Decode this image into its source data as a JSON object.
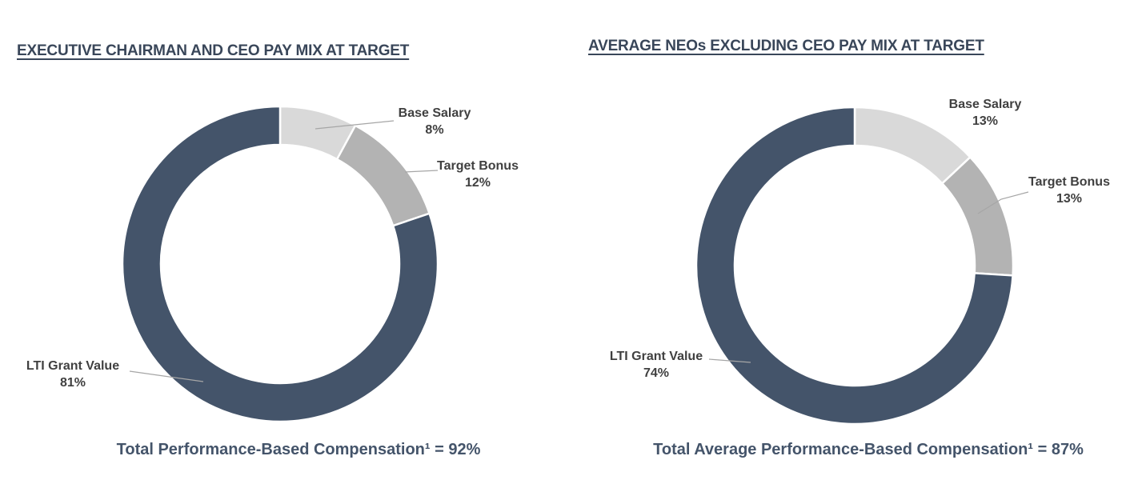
{
  "page": {
    "background": "#ffffff",
    "figure_description": "Two donut charts showing executive pay mix at target"
  },
  "colors": {
    "navy": "#44546A",
    "medium_gray": "#b3b3b3",
    "light_gray": "#d9d9d9",
    "label_text": "#404040",
    "leader_line": "#a6a6a6",
    "title_text": "#394659",
    "caption_text": "#44546A",
    "separator": "#ffffff"
  },
  "chart_data": [
    {
      "type": "pie",
      "subtype": "donut",
      "title": "EXECUTIVE CHAIRMAN AND CEO PAY MIX AT TARGET",
      "categories": [
        "Base Salary",
        "Target Bonus",
        "LTI Grant Value"
      ],
      "values": [
        8,
        12,
        81
      ],
      "unit": "%",
      "colors": [
        "#d9d9d9",
        "#b3b3b3",
        "#44546A"
      ],
      "slice_labels": [
        {
          "name": "Base Salary",
          "value": "8%"
        },
        {
          "name": "Target Bonus",
          "value": "12%"
        },
        {
          "name": "LTI Grant Value",
          "value": "81%"
        }
      ],
      "start_angle": "12 o'clock, clockwise",
      "hole_ratio": 0.76,
      "legend": "none",
      "caption": "Total Performance-Based Compensation¹ = 92%"
    },
    {
      "type": "pie",
      "subtype": "donut",
      "title": "AVERAGE NEOs EXCLUDING CEO PAY MIX AT TARGET",
      "categories": [
        "Base Salary",
        "Target Bonus",
        "LTI Grant Value"
      ],
      "values": [
        13,
        13,
        74
      ],
      "unit": "%",
      "colors": [
        "#d9d9d9",
        "#b3b3b3",
        "#44546A"
      ],
      "slice_labels": [
        {
          "name": "Base Salary",
          "value": "13%"
        },
        {
          "name": "Target Bonus",
          "value": "13%"
        },
        {
          "name": "LTI Grant Value",
          "value": "74%"
        }
      ],
      "start_angle": "12 o'clock, clockwise",
      "hole_ratio": 0.76,
      "legend": "none",
      "caption": "Total Average Performance-Based Compensation¹ = 87%"
    }
  ]
}
